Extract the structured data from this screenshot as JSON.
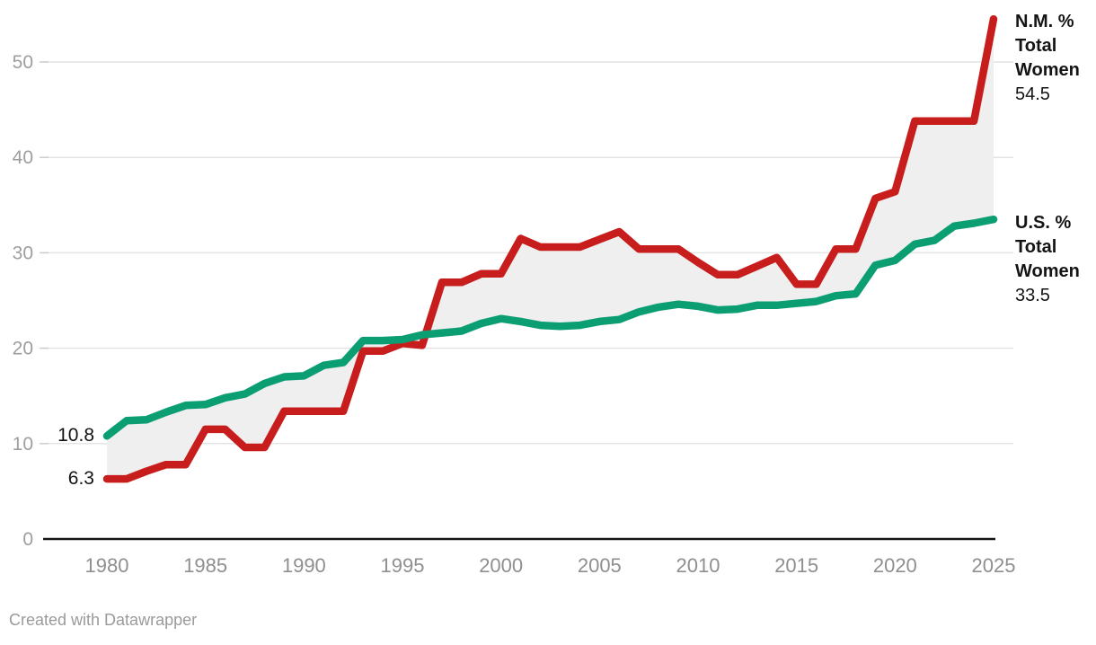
{
  "chart_data": {
    "type": "line",
    "title": "",
    "xlabel": "",
    "ylabel": "",
    "x": [
      1980,
      1981,
      1982,
      1983,
      1984,
      1985,
      1986,
      1987,
      1988,
      1989,
      1990,
      1991,
      1992,
      1993,
      1994,
      1995,
      1996,
      1997,
      1998,
      1999,
      2000,
      2001,
      2002,
      2003,
      2004,
      2005,
      2006,
      2007,
      2008,
      2009,
      2010,
      2011,
      2012,
      2013,
      2014,
      2015,
      2016,
      2017,
      2018,
      2019,
      2020,
      2021,
      2022,
      2023,
      2024,
      2025
    ],
    "x_ticks": [
      "1980",
      "1985",
      "1990",
      "1995",
      "2000",
      "2005",
      "2010",
      "2015",
      "2020",
      "2025"
    ],
    "y_ticks": [
      0,
      10,
      20,
      30,
      40,
      50
    ],
    "xlim": [
      1980,
      2025
    ],
    "ylim": [
      0,
      56
    ],
    "grid": "horizontal",
    "legend_position": "direct-labels-right",
    "area_between_series": true,
    "area_color": "#efefef",
    "series": [
      {
        "name": "N.M. % Total Women",
        "label_lines": [
          "N.M. %",
          "Total",
          "Women"
        ],
        "color": "#c71e1d",
        "start_label": "6.3",
        "end_label": "54.5",
        "values": [
          6.3,
          6.3,
          7.1,
          7.8,
          7.8,
          11.5,
          11.5,
          9.6,
          9.6,
          13.4,
          13.4,
          13.4,
          13.4,
          19.7,
          19.7,
          20.5,
          20.3,
          26.9,
          26.9,
          27.8,
          27.8,
          31.5,
          30.6,
          30.6,
          30.6,
          31.4,
          32.2,
          30.4,
          30.4,
          30.4,
          29.0,
          27.7,
          27.7,
          28.6,
          29.5,
          26.7,
          26.7,
          30.4,
          30.4,
          35.7,
          36.4,
          43.8,
          43.8,
          43.8,
          43.8,
          54.5
        ]
      },
      {
        "name": "U.S. % Total Women",
        "label_lines": [
          "U.S. %",
          "Total",
          "Women"
        ],
        "color": "#0c9e73",
        "start_label": "10.8",
        "end_label": "33.5",
        "values": [
          10.8,
          12.4,
          12.5,
          13.3,
          14.0,
          14.1,
          14.8,
          15.2,
          16.3,
          17.0,
          17.1,
          18.2,
          18.5,
          20.8,
          20.8,
          20.9,
          21.4,
          21.6,
          21.8,
          22.6,
          23.1,
          22.8,
          22.4,
          22.3,
          22.4,
          22.8,
          23.0,
          23.8,
          24.3,
          24.6,
          24.4,
          24.0,
          24.1,
          24.5,
          24.5,
          24.7,
          24.9,
          25.5,
          25.7,
          28.7,
          29.2,
          30.9,
          31.3,
          32.8,
          33.1,
          33.5
        ]
      }
    ]
  },
  "footer": {
    "credit": "Created with Datawrapper"
  }
}
